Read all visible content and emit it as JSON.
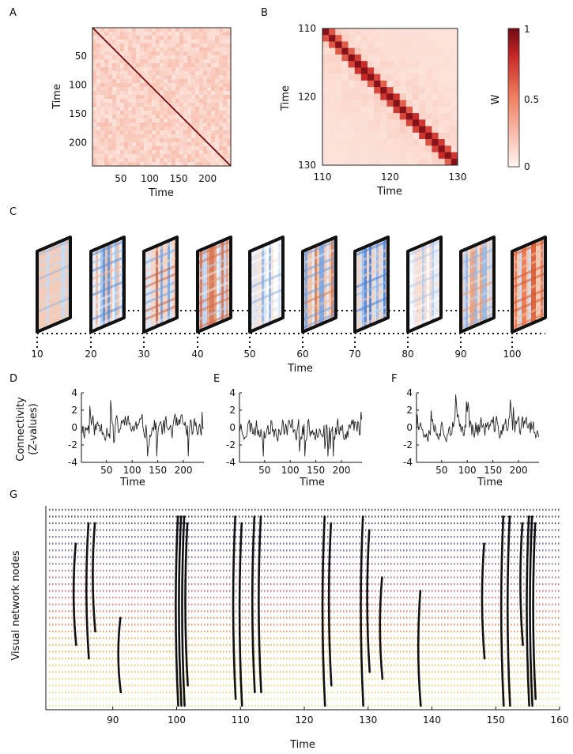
{
  "figure": {
    "panels": {
      "A": {
        "letter": "A",
        "xlabel": "Time",
        "ylabel": "Time",
        "xticks": [
          "50",
          "100",
          "150",
          "200"
        ],
        "yticks": [
          "50",
          "100",
          "150",
          "200"
        ]
      },
      "B": {
        "letter": "B",
        "xlabel": "Time",
        "ylabel": "Time",
        "xticks": [
          "110",
          "120",
          "130"
        ],
        "yticks": [
          "110",
          "120",
          "130"
        ]
      },
      "colorbar": {
        "label": "W",
        "ticks": [
          "1",
          "0.5",
          "0"
        ]
      },
      "C": {
        "letter": "C",
        "xlabel": "Time",
        "ticks": [
          "10",
          "20",
          "30",
          "40",
          "50",
          "60",
          "70",
          "80",
          "90",
          "100"
        ]
      },
      "D": {
        "letter": "D",
        "xlabel": "Time",
        "ylabel_line1": "Connectivity",
        "ylabel_line2": "(Z-values)",
        "yticks": [
          "4",
          "2",
          "0",
          "-2",
          "-4"
        ],
        "xticks": [
          "50",
          "100",
          "150",
          "200"
        ]
      },
      "E": {
        "letter": "E",
        "xlabel": "Time",
        "yticks": [
          "4",
          "2",
          "0",
          "-2",
          "-4"
        ],
        "xticks": [
          "50",
          "100",
          "150",
          "200"
        ]
      },
      "F": {
        "letter": "F",
        "xlabel": "Time",
        "yticks": [
          "4",
          "2",
          "0",
          "-2",
          "-4"
        ],
        "xticks": [
          "50",
          "100",
          "150",
          "200"
        ]
      },
      "G": {
        "letter": "G",
        "xlabel": "Time",
        "ylabel": "Visual network nodes",
        "xticks": [
          "90",
          "100",
          "110",
          "120",
          "130",
          "140",
          "150",
          "160"
        ]
      }
    }
  },
  "chart_data": [
    {
      "type": "heatmap",
      "panel": "A",
      "xlabel": "Time",
      "ylabel": "Time",
      "xlim": [
        1,
        240
      ],
      "ylim": [
        1,
        240
      ],
      "colormap": "white-to-darkred",
      "diagonal_value": 1.0,
      "offdiagonal_typical": 0.15
    },
    {
      "type": "heatmap",
      "panel": "B",
      "xlabel": "Time",
      "ylabel": "Time",
      "xlim": [
        110,
        130
      ],
      "ylim": [
        110,
        130
      ],
      "colormap": "white-to-darkred",
      "diagonal_value": 1.0,
      "near_diagonal_value": 0.6
    },
    {
      "type": "line",
      "panel": "D",
      "xlabel": "Time",
      "ylabel": "Connectivity (Z-values)",
      "xlim": [
        1,
        240
      ],
      "ylim": [
        -4,
        4
      ],
      "seed": 11
    },
    {
      "type": "line",
      "panel": "E",
      "xlabel": "Time",
      "xlim": [
        1,
        240
      ],
      "ylim": [
        -4,
        4
      ],
      "seed": 23
    },
    {
      "type": "line",
      "panel": "F",
      "xlabel": "Time",
      "xlim": [
        1,
        240
      ],
      "ylim": [
        -4,
        4
      ],
      "seed": 37
    },
    {
      "type": "scatter",
      "panel": "G",
      "xlabel": "Time",
      "ylabel": "Visual network nodes",
      "xlim": [
        80,
        160
      ],
      "nodes": 30,
      "events": [
        {
          "t": 84,
          "from": 5,
          "to": 20
        },
        {
          "t": 86,
          "from": 2,
          "to": 22
        },
        {
          "t": 87,
          "from": 2,
          "to": 18
        },
        {
          "t": 91,
          "from": 16,
          "to": 27
        },
        {
          "t": 100,
          "from": 1,
          "to": 29
        },
        {
          "t": 100.5,
          "from": 1,
          "to": 29
        },
        {
          "t": 101,
          "from": 1,
          "to": 29
        },
        {
          "t": 101.5,
          "from": 2,
          "to": 26
        },
        {
          "t": 109,
          "from": 1,
          "to": 28
        },
        {
          "t": 110,
          "from": 2,
          "to": 29
        },
        {
          "t": 112,
          "from": 1,
          "to": 27
        },
        {
          "t": 113,
          "from": 1,
          "to": 27
        },
        {
          "t": 123,
          "from": 1,
          "to": 29
        },
        {
          "t": 124,
          "from": 2,
          "to": 26
        },
        {
          "t": 129,
          "from": 1,
          "to": 29
        },
        {
          "t": 130,
          "from": 3,
          "to": 24
        },
        {
          "t": 132,
          "from": 10,
          "to": 25
        },
        {
          "t": 138,
          "from": 12,
          "to": 29
        },
        {
          "t": 148,
          "from": 5,
          "to": 22
        },
        {
          "t": 151,
          "from": 1,
          "to": 29
        },
        {
          "t": 152,
          "from": 1,
          "to": 29
        },
        {
          "t": 154,
          "from": 2,
          "to": 20
        },
        {
          "t": 155,
          "from": 1,
          "to": 29
        },
        {
          "t": 155.5,
          "from": 1,
          "to": 29
        },
        {
          "t": 156,
          "from": 2,
          "to": 28
        }
      ]
    }
  ]
}
